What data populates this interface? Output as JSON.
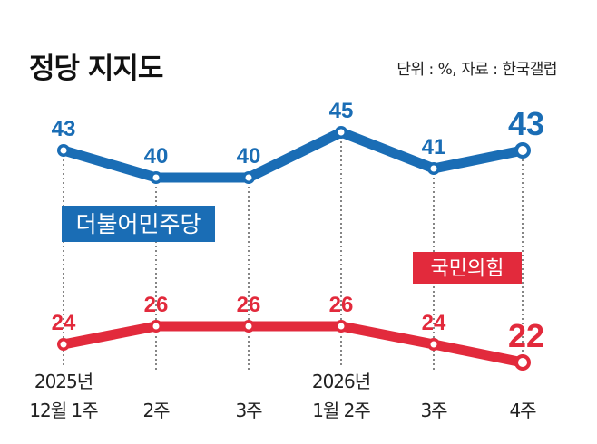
{
  "title": "정당 지지도",
  "source": "단위 : %, 자료 : 한국갤럽",
  "chart_data": {
    "type": "line",
    "title": "정당 지지도",
    "categories": [
      [
        "2025년",
        "12월 1주"
      ],
      [
        "2주"
      ],
      [
        "3주"
      ],
      [
        "2026년",
        "1월 2주"
      ],
      [
        "3주"
      ],
      [
        "4주"
      ]
    ],
    "series": [
      {
        "name": "더불어민주당",
        "color": "#1a6db5",
        "values": [
          43,
          40,
          40,
          45,
          41,
          43
        ]
      },
      {
        "name": "국민의힘",
        "color": "#e22a3c",
        "values": [
          24,
          26,
          26,
          26,
          24,
          22
        ]
      }
    ],
    "unit": "%",
    "grid": false,
    "legend": "inline-labels"
  }
}
